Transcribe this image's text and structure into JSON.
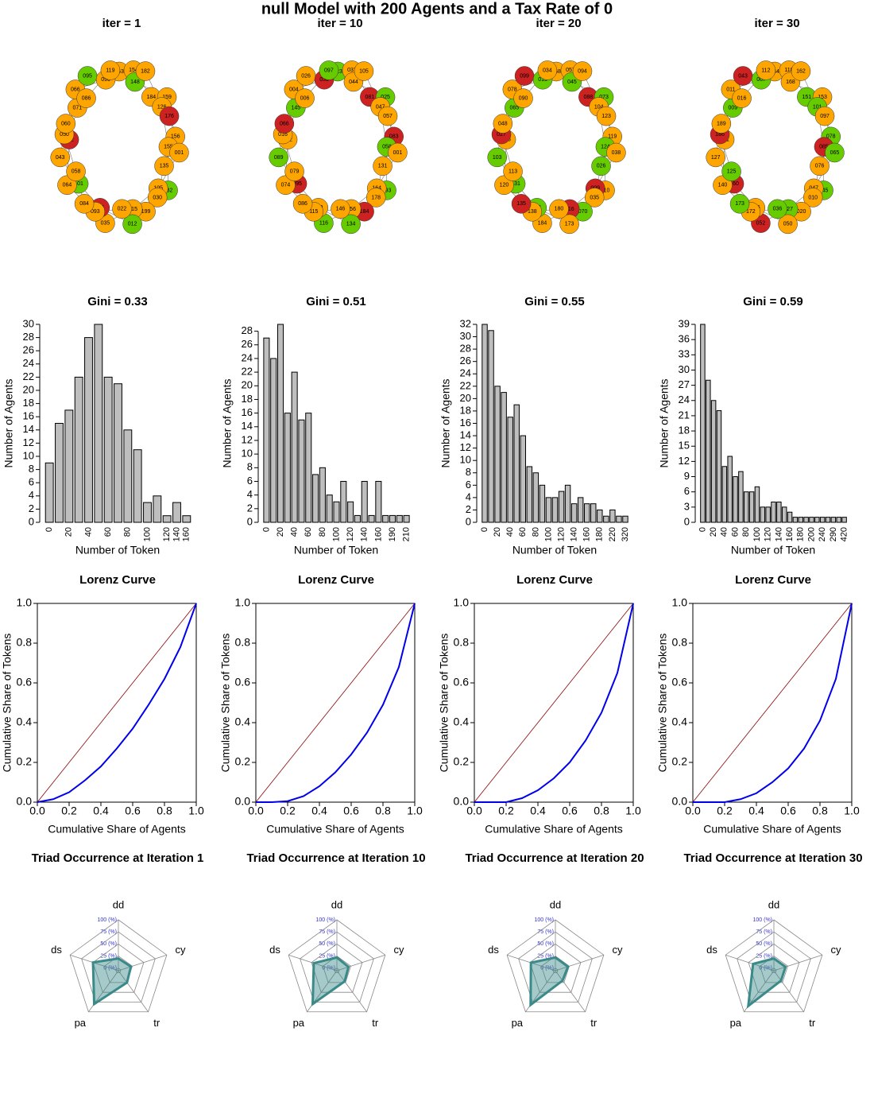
{
  "title": "null  Model with  200  Agents and a Tax Rate of  0",
  "chart_data": [
    {
      "type": "network",
      "title": "iter = 1",
      "labels": [
        "163",
        "154",
        "148",
        "182",
        "184",
        "159",
        "126",
        "176",
        "156",
        "155",
        "001",
        "135",
        "132",
        "105",
        "030",
        "199",
        "015",
        "012",
        "022",
        "035",
        "041",
        "093",
        "084",
        "101",
        "064",
        "058",
        "043",
        "052",
        "050",
        "060",
        "071",
        "066",
        "086",
        "095",
        "090",
        "119"
      ],
      "colors": [
        "#ffa500",
        "#ffa500",
        "#66cc00",
        "#ffa500",
        "#ffa500",
        "#ffa500",
        "#ffa500",
        "#cc2222",
        "#ffa500",
        "#ffa500",
        "#ffa500",
        "#ffa500",
        "#66cc00",
        "#ffa500",
        "#ffa500",
        "#ffa500",
        "#ffa500",
        "#66cc00",
        "#ffa500",
        "#ffa500",
        "#cc2222",
        "#ffa500",
        "#ffa500",
        "#66cc00",
        "#ffa500",
        "#ffa500",
        "#ffa500",
        "#cc2222",
        "#ffa500",
        "#ffa500",
        "#ffa500",
        "#ffa500",
        "#ffa500",
        "#66cc00",
        "#ffa500",
        "#ffa500"
      ]
    },
    {
      "type": "network",
      "title": "iter = 10",
      "labels": [
        "023",
        "037",
        "044",
        "105",
        "081",
        "025",
        "047",
        "057",
        "083",
        "058",
        "001",
        "131",
        "193",
        "164",
        "178",
        "184",
        "156",
        "134",
        "146",
        "116",
        "119",
        "115",
        "086",
        "095",
        "074",
        "079",
        "089",
        "072",
        "016",
        "066",
        "145",
        "004",
        "006",
        "026",
        "030",
        "097"
      ],
      "colors": [
        "#66cc00",
        "#ffa500",
        "#ffa500",
        "#ffa500",
        "#cc2222",
        "#66cc00",
        "#ffa500",
        "#ffa500",
        "#cc2222",
        "#66cc00",
        "#ffa500",
        "#ffa500",
        "#66cc00",
        "#ffa500",
        "#ffa500",
        "#cc2222",
        "#ffa500",
        "#66cc00",
        "#ffa500",
        "#66cc00",
        "#ffa500",
        "#ffa500",
        "#ffa500",
        "#cc2222",
        "#ffa500",
        "#ffa500",
        "#66cc00",
        "#ffa500",
        "#ffa500",
        "#cc2222",
        "#66cc00",
        "#ffa500",
        "#ffa500",
        "#ffa500",
        "#cc2222",
        "#66cc00"
      ]
    },
    {
      "type": "network",
      "title": "iter = 20",
      "labels": [
        "068",
        "057",
        "045",
        "094",
        "088",
        "073",
        "104",
        "123",
        "119",
        "124",
        "038",
        "026",
        "010",
        "009",
        "035",
        "070",
        "116",
        "173",
        "180",
        "184",
        "141",
        "138",
        "135",
        "131",
        "120",
        "113",
        "103",
        "106",
        "027",
        "048",
        "065",
        "078",
        "090",
        "099",
        "015",
        "034"
      ],
      "colors": [
        "#ffa500",
        "#ffa500",
        "#66cc00",
        "#ffa500",
        "#cc2222",
        "#66cc00",
        "#ffa500",
        "#ffa500",
        "#ffa500",
        "#66cc00",
        "#ffa500",
        "#66cc00",
        "#ffa500",
        "#cc2222",
        "#ffa500",
        "#66cc00",
        "#cc2222",
        "#ffa500",
        "#ffa500",
        "#ffa500",
        "#66cc00",
        "#ffa500",
        "#cc2222",
        "#66cc00",
        "#ffa500",
        "#ffa500",
        "#66cc00",
        "#ffa500",
        "#cc2222",
        "#ffa500",
        "#66cc00",
        "#ffa500",
        "#ffa500",
        "#cc2222",
        "#66cc00",
        "#ffa500"
      ]
    },
    {
      "type": "network",
      "title": "iter = 30",
      "labels": [
        "134",
        "118",
        "168",
        "162",
        "151",
        "153",
        "101",
        "097",
        "078",
        "085",
        "065",
        "076",
        "045",
        "047",
        "010",
        "020",
        "027",
        "050",
        "036",
        "052",
        "096",
        "172",
        "173",
        "160",
        "140",
        "125",
        "127",
        "131",
        "186",
        "189",
        "009",
        "011",
        "016",
        "043",
        "067",
        "112"
      ],
      "colors": [
        "#ffa500",
        "#ffa500",
        "#ffa500",
        "#ffa500",
        "#66cc00",
        "#ffa500",
        "#66cc00",
        "#ffa500",
        "#66cc00",
        "#cc2222",
        "#66cc00",
        "#ffa500",
        "#66cc00",
        "#ffa500",
        "#ffa500",
        "#ffa500",
        "#66cc00",
        "#ffa500",
        "#66cc00",
        "#cc2222",
        "#ffa500",
        "#ffa500",
        "#66cc00",
        "#cc2222",
        "#ffa500",
        "#66cc00",
        "#ffa500",
        "#ffa500",
        "#cc2222",
        "#ffa500",
        "#66cc00",
        "#ffa500",
        "#ffa500",
        "#cc2222",
        "#66cc00",
        "#ffa500"
      ]
    },
    {
      "type": "bar",
      "title": "Gini = 0.33",
      "xlabel": "Number of Token",
      "ylabel": "Number of Agents",
      "color": "#bebebe",
      "categories": [
        0,
        null,
        20,
        null,
        40,
        null,
        60,
        null,
        80,
        null,
        100,
        null,
        120,
        140,
        160
      ],
      "values": [
        9,
        15,
        17,
        22,
        28,
        30,
        22,
        21,
        14,
        11,
        3,
        4,
        1,
        3,
        1
      ],
      "ylim": [
        0,
        30
      ],
      "yticks": [
        0,
        2,
        4,
        6,
        8,
        10,
        12,
        14,
        16,
        18,
        20,
        22,
        24,
        26,
        28,
        30
      ]
    },
    {
      "type": "bar",
      "title": "Gini = 0.51",
      "xlabel": "Number of Token",
      "ylabel": "Number of Agents",
      "color": "#bebebe",
      "categories": [
        0,
        null,
        20,
        null,
        40,
        null,
        60,
        null,
        80,
        null,
        100,
        null,
        120,
        null,
        140,
        null,
        160,
        null,
        190,
        null,
        210
      ],
      "values": [
        27,
        24,
        29,
        16,
        22,
        15,
        16,
        7,
        8,
        4,
        3,
        6,
        3,
        1,
        6,
        1,
        6,
        1,
        1,
        1,
        1
      ],
      "ylim": [
        0,
        29
      ],
      "yticks": [
        0,
        2,
        4,
        6,
        8,
        10,
        12,
        14,
        16,
        18,
        20,
        22,
        24,
        26,
        28
      ]
    },
    {
      "type": "bar",
      "title": "Gini = 0.55",
      "xlabel": "Number of Token",
      "ylabel": "Number of Agents",
      "color": "#bebebe",
      "categories": [
        0,
        null,
        20,
        null,
        40,
        null,
        60,
        null,
        80,
        null,
        100,
        null,
        120,
        null,
        140,
        null,
        160,
        null,
        180,
        null,
        220,
        null,
        320
      ],
      "values": [
        32,
        31,
        22,
        21,
        17,
        19,
        14,
        9,
        8,
        6,
        4,
        4,
        5,
        6,
        3,
        4,
        3,
        3,
        2,
        1,
        2,
        1,
        1
      ],
      "ylim": [
        0,
        32
      ],
      "yticks": [
        0,
        2,
        4,
        6,
        8,
        10,
        12,
        14,
        16,
        18,
        20,
        22,
        24,
        26,
        28,
        30,
        32
      ]
    },
    {
      "type": "bar",
      "title": "Gini = 0.59",
      "xlabel": "Number of Token",
      "ylabel": "Number of Agents",
      "color": "#bebebe",
      "categories": [
        0,
        null,
        20,
        null,
        40,
        null,
        60,
        null,
        80,
        null,
        100,
        null,
        120,
        null,
        140,
        null,
        160,
        null,
        180,
        null,
        200,
        null,
        240,
        null,
        290,
        null,
        420
      ],
      "values": [
        39,
        28,
        24,
        22,
        11,
        13,
        9,
        10,
        6,
        6,
        7,
        3,
        3,
        4,
        4,
        3,
        2,
        1,
        1,
        1,
        1,
        1,
        1,
        1,
        1,
        1,
        1
      ],
      "ylim": [
        0,
        39
      ],
      "yticks": [
        0,
        3,
        6,
        9,
        12,
        15,
        18,
        21,
        24,
        27,
        30,
        33,
        36,
        39
      ]
    },
    {
      "type": "line",
      "title": "Lorenz Curve",
      "xlabel": "Cumulative Share of Agents",
      "ylabel": "Cumulative Share of Tokens",
      "xlim": [
        0,
        1
      ],
      "ylim": [
        0,
        1
      ],
      "xticks": [
        {
          "value": 0,
          "label": "0.0"
        },
        0.2,
        0.4,
        0.6,
        0.8,
        {
          "value": 1,
          "label": "1.0"
        }
      ],
      "yticks": [
        {
          "value": 0,
          "label": "0.0"
        },
        0.2,
        0.4,
        0.6,
        0.8,
        {
          "value": 1,
          "label": "1.0"
        }
      ],
      "series": [
        {
          "color": "#8b0000",
          "x": [
            0,
            1
          ],
          "values": [
            0,
            1
          ]
        },
        {
          "color": "#0000ee",
          "x": [
            0,
            0.1,
            0.2,
            0.3,
            0.4,
            0.5,
            0.6,
            0.7,
            0.8,
            0.9,
            1
          ],
          "values": [
            0,
            0.015,
            0.05,
            0.11,
            0.18,
            0.27,
            0.37,
            0.49,
            0.62,
            0.78,
            1
          ]
        }
      ]
    },
    {
      "type": "line",
      "title": "Lorenz Curve",
      "xlabel": "Cumulative Share of Agents",
      "ylabel": "Cumulative Share of Tokens",
      "xlim": [
        0,
        1
      ],
      "ylim": [
        0,
        1
      ],
      "xticks": [
        {
          "value": 0,
          "label": "0.0"
        },
        0.2,
        0.4,
        0.6,
        0.8,
        {
          "value": 1,
          "label": "1.0"
        }
      ],
      "yticks": [
        {
          "value": 0,
          "label": "0.0"
        },
        0.2,
        0.4,
        0.6,
        0.8,
        {
          "value": 1,
          "label": "1.0"
        }
      ],
      "series": [
        {
          "color": "#8b0000",
          "x": [
            0,
            1
          ],
          "values": [
            0,
            1
          ]
        },
        {
          "color": "#0000ee",
          "x": [
            0,
            0.1,
            0.2,
            0.3,
            0.4,
            0.5,
            0.6,
            0.7,
            0.8,
            0.9,
            1
          ],
          "values": [
            0,
            0,
            0.005,
            0.03,
            0.08,
            0.15,
            0.24,
            0.35,
            0.49,
            0.68,
            1
          ]
        }
      ]
    },
    {
      "type": "line",
      "title": "Lorenz Curve",
      "xlabel": "Cumulative Share of Agents",
      "ylabel": "Cumulative Share of Tokens",
      "xlim": [
        0,
        1
      ],
      "ylim": [
        0,
        1
      ],
      "xticks": [
        {
          "value": 0,
          "label": "0.0"
        },
        0.2,
        0.4,
        0.6,
        0.8,
        {
          "value": 1,
          "label": "1.0"
        }
      ],
      "yticks": [
        {
          "value": 0,
          "label": "0.0"
        },
        0.2,
        0.4,
        0.6,
        0.8,
        {
          "value": 1,
          "label": "1.0"
        }
      ],
      "series": [
        {
          "color": "#8b0000",
          "x": [
            0,
            1
          ],
          "values": [
            0,
            1
          ]
        },
        {
          "color": "#0000ee",
          "x": [
            0,
            0.1,
            0.2,
            0.3,
            0.4,
            0.5,
            0.6,
            0.7,
            0.8,
            0.9,
            1
          ],
          "values": [
            0,
            0,
            0,
            0.02,
            0.06,
            0.12,
            0.2,
            0.31,
            0.45,
            0.65,
            1
          ]
        }
      ]
    },
    {
      "type": "line",
      "title": "Lorenz Curve",
      "xlabel": "Cumulative Share of Agents",
      "ylabel": "Cumulative Share of Tokens",
      "xlim": [
        0,
        1
      ],
      "ylim": [
        0,
        1
      ],
      "xticks": [
        {
          "value": 0,
          "label": "0.0"
        },
        0.2,
        0.4,
        0.6,
        0.8,
        {
          "value": 1,
          "label": "1.0"
        }
      ],
      "yticks": [
        {
          "value": 0,
          "label": "0.0"
        },
        0.2,
        0.4,
        0.6,
        0.8,
        {
          "value": 1,
          "label": "1.0"
        }
      ],
      "series": [
        {
          "color": "#8b0000",
          "x": [
            0,
            1
          ],
          "values": [
            0,
            1
          ]
        },
        {
          "color": "#0000ee",
          "x": [
            0,
            0.1,
            0.2,
            0.3,
            0.4,
            0.5,
            0.6,
            0.7,
            0.8,
            0.9,
            1
          ],
          "values": [
            0,
            0,
            0,
            0.015,
            0.045,
            0.1,
            0.17,
            0.27,
            0.41,
            0.62,
            1
          ]
        }
      ]
    },
    {
      "type": "radar",
      "title": "Triad Occurrence at Iteration  1",
      "categories": [
        "dd",
        "cy",
        "tr",
        "pa",
        "ds"
      ],
      "values": [
        20,
        22,
        25,
        80,
        50
      ],
      "color": "#3a8a8a",
      "ylim": [
        0,
        100
      ],
      "yticks": [
        {
          "value": 0,
          "label": "0 (%)"
        },
        {
          "value": 25,
          "label": "25 (%)"
        },
        {
          "value": 50,
          "label": "50 (%)"
        },
        {
          "value": 75,
          "label": "75 (%)"
        },
        {
          "value": 100,
          "label": "100 (%)"
        }
      ]
    },
    {
      "type": "radar",
      "title": "Triad Occurrence at Iteration  10",
      "categories": [
        "dd",
        "cy",
        "tr",
        "pa",
        "ds"
      ],
      "values": [
        22,
        20,
        22,
        80,
        45
      ],
      "color": "#3a8a8a",
      "ylim": [
        0,
        100
      ],
      "yticks": [
        {
          "value": 0,
          "label": "0 (%)"
        },
        {
          "value": 25,
          "label": "25 (%)"
        },
        {
          "value": 50,
          "label": "50 (%)"
        },
        {
          "value": 75,
          "label": "75 (%)"
        },
        {
          "value": 100,
          "label": "100 (%)"
        }
      ]
    },
    {
      "type": "radar",
      "title": "Triad Occurrence at Iteration  20",
      "categories": [
        "dd",
        "cy",
        "tr",
        "pa",
        "ds"
      ],
      "values": [
        22,
        22,
        20,
        82,
        48
      ],
      "color": "#3a8a8a",
      "ylim": [
        0,
        100
      ],
      "yticks": [
        {
          "value": 0,
          "label": "0 (%)"
        },
        {
          "value": 25,
          "label": "25 (%)"
        },
        {
          "value": 50,
          "label": "50 (%)"
        },
        {
          "value": 75,
          "label": "75 (%)"
        },
        {
          "value": 100,
          "label": "100 (%)"
        }
      ]
    },
    {
      "type": "radar",
      "title": "Triad Occurrence at Iteration  30",
      "categories": [
        "dd",
        "cy",
        "tr",
        "pa",
        "ds"
      ],
      "values": [
        20,
        20,
        20,
        85,
        40
      ],
      "color": "#3a8a8a",
      "ylim": [
        0,
        100
      ],
      "yticks": [
        {
          "value": 0,
          "label": "0 (%)"
        },
        {
          "value": 25,
          "label": "25 (%)"
        },
        {
          "value": 50,
          "label": "50 (%)"
        },
        {
          "value": 75,
          "label": "75 (%)"
        },
        {
          "value": 100,
          "label": "100 (%)"
        }
      ]
    }
  ]
}
